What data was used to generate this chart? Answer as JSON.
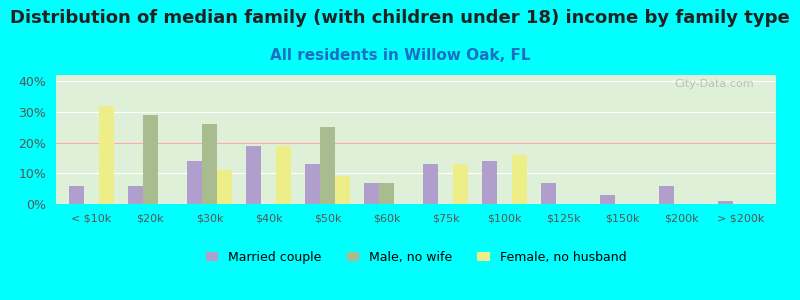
{
  "title": "Distribution of median family (with children under 18) income by family type",
  "subtitle": "All residents in Willow Oak, FL",
  "categories": [
    "< $10k",
    "$20k",
    "$30k",
    "$40k",
    "$50k",
    "$60k",
    "$75k",
    "$100k",
    "$125k",
    "$150k",
    "$200k",
    "> $200k"
  ],
  "married_couple": [
    6,
    6,
    14,
    19,
    13,
    7,
    13,
    14,
    7,
    3,
    6,
    1
  ],
  "male_no_wife": [
    0,
    29,
    26,
    0,
    25,
    7,
    0,
    0,
    0,
    0,
    0,
    0
  ],
  "female_no_husband": [
    32,
    0,
    11,
    19,
    9,
    0,
    13,
    16,
    0,
    0,
    0,
    0
  ],
  "married_color": "#b09fcc",
  "male_color": "#a8bc8f",
  "female_color": "#eeee88",
  "bg_color": "#00ffff",
  "ylim": [
    0,
    42
  ],
  "yticks": [
    0,
    10,
    20,
    30,
    40
  ],
  "yticklabels": [
    "0%",
    "10%",
    "20%",
    "30%",
    "40%"
  ],
  "title_fontsize": 13,
  "subtitle_fontsize": 11,
  "watermark": "City-Data.com"
}
